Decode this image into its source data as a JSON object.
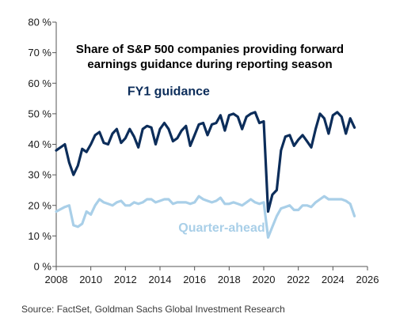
{
  "chart_data": {
    "type": "line",
    "title_lines": [
      "Share of S&P 500 companies providing forward",
      "earnings guidance during reporting season"
    ],
    "xlabel": "",
    "ylabel": "",
    "xlim": [
      2008,
      2026
    ],
    "ylim": [
      0,
      80
    ],
    "x_ticks": [
      2008,
      2010,
      2012,
      2014,
      2016,
      2018,
      2020,
      2022,
      2024,
      2026
    ],
    "y_ticks": [
      0,
      10,
      20,
      30,
      40,
      50,
      60,
      70,
      80
    ],
    "y_tick_labels": [
      "0 %",
      "10 %",
      "20 %",
      "30 %",
      "40 %",
      "50 %",
      "60 %",
      "70 %",
      "80 %"
    ],
    "grid": false,
    "colors": {
      "fy1": "#0c2d5a",
      "quarter_ahead": "#a9cfe8"
    },
    "series": [
      {
        "name": "FY1 guidance",
        "x": [
          2008.0,
          2008.5,
          2008.75,
          2009.0,
          2009.25,
          2009.5,
          2009.75,
          2010.0,
          2010.25,
          2010.5,
          2010.75,
          2011.0,
          2011.25,
          2011.5,
          2011.75,
          2012.0,
          2012.25,
          2012.5,
          2012.75,
          2013.0,
          2013.25,
          2013.5,
          2013.75,
          2014.0,
          2014.25,
          2014.5,
          2014.75,
          2015.0,
          2015.25,
          2015.5,
          2015.75,
          2016.0,
          2016.25,
          2016.5,
          2016.75,
          2017.0,
          2017.25,
          2017.5,
          2017.75,
          2018.0,
          2018.25,
          2018.5,
          2018.75,
          2019.0,
          2019.25,
          2019.5,
          2019.75,
          2020.0,
          2020.25,
          2020.5,
          2020.75,
          2021.0,
          2021.25,
          2021.5,
          2021.75,
          2022.0,
          2022.25,
          2022.5,
          2022.75,
          2023.0,
          2023.25,
          2023.5,
          2023.75,
          2024.0,
          2024.25,
          2024.5,
          2024.75,
          2025.0,
          2025.25
        ],
        "values": [
          38,
          40,
          34,
          30,
          33,
          38.5,
          37.5,
          40,
          43,
          44,
          40.5,
          40,
          43.5,
          45,
          40.5,
          42,
          45,
          42.5,
          39,
          45,
          46,
          45.5,
          40,
          45,
          47,
          45,
          41,
          42,
          44.5,
          46,
          39.5,
          43,
          46.5,
          47,
          43,
          46.5,
          47,
          49.5,
          44.5,
          49.5,
          50,
          49,
          45,
          49,
          50,
          50.5,
          47,
          47.5,
          18,
          23.5,
          25,
          38,
          42.5,
          43,
          39.5,
          41.5,
          43,
          41,
          39,
          45,
          50,
          48.5,
          43.5,
          49.5,
          50.5,
          49,
          43.5,
          48.5,
          45.5
        ]
      },
      {
        "name": "Quarter-ahead",
        "x": [
          2008.0,
          2008.5,
          2008.75,
          2009.0,
          2009.25,
          2009.5,
          2009.75,
          2010.0,
          2010.25,
          2010.5,
          2010.75,
          2011.0,
          2011.25,
          2011.5,
          2011.75,
          2012.0,
          2012.25,
          2012.5,
          2012.75,
          2013.0,
          2013.25,
          2013.5,
          2013.75,
          2014.0,
          2014.25,
          2014.5,
          2014.75,
          2015.0,
          2015.25,
          2015.5,
          2015.75,
          2016.0,
          2016.25,
          2016.5,
          2016.75,
          2017.0,
          2017.25,
          2017.5,
          2017.75,
          2018.0,
          2018.25,
          2018.5,
          2018.75,
          2019.0,
          2019.25,
          2019.5,
          2019.75,
          2020.0,
          2020.25,
          2020.5,
          2020.75,
          2021.0,
          2021.25,
          2021.5,
          2021.75,
          2022.0,
          2022.25,
          2022.5,
          2022.75,
          2023.0,
          2023.25,
          2023.5,
          2023.75,
          2024.0,
          2024.25,
          2024.5,
          2024.75,
          2025.0,
          2025.25
        ],
        "values": [
          18,
          19.5,
          20,
          13.5,
          13,
          14,
          18,
          17,
          20,
          22,
          21,
          20.5,
          20,
          21,
          21.5,
          20,
          20,
          21,
          20.5,
          21,
          22,
          22,
          21,
          21.5,
          22,
          22,
          20.5,
          21,
          21,
          21,
          20.5,
          21,
          23,
          22,
          21.5,
          21,
          21.5,
          22.5,
          20.5,
          20.5,
          21,
          20.5,
          20,
          21,
          22,
          21,
          20.5,
          21,
          9.5,
          13,
          16.5,
          19,
          19.5,
          20,
          18.5,
          18.5,
          20,
          20,
          19.5,
          21,
          22,
          23,
          22,
          22,
          22,
          22,
          21.5,
          20.5,
          16.5
        ]
      }
    ],
    "labels": [
      {
        "text": "FY1 guidance",
        "series": 0,
        "at": [
          2014.5,
          56
        ]
      },
      {
        "text": "Quarter-ahead",
        "series": 1,
        "at": [
          2010.7,
          14
        ]
      }
    ],
    "source": "Source: FactSet, Goldman Sachs Global Investment Research"
  }
}
